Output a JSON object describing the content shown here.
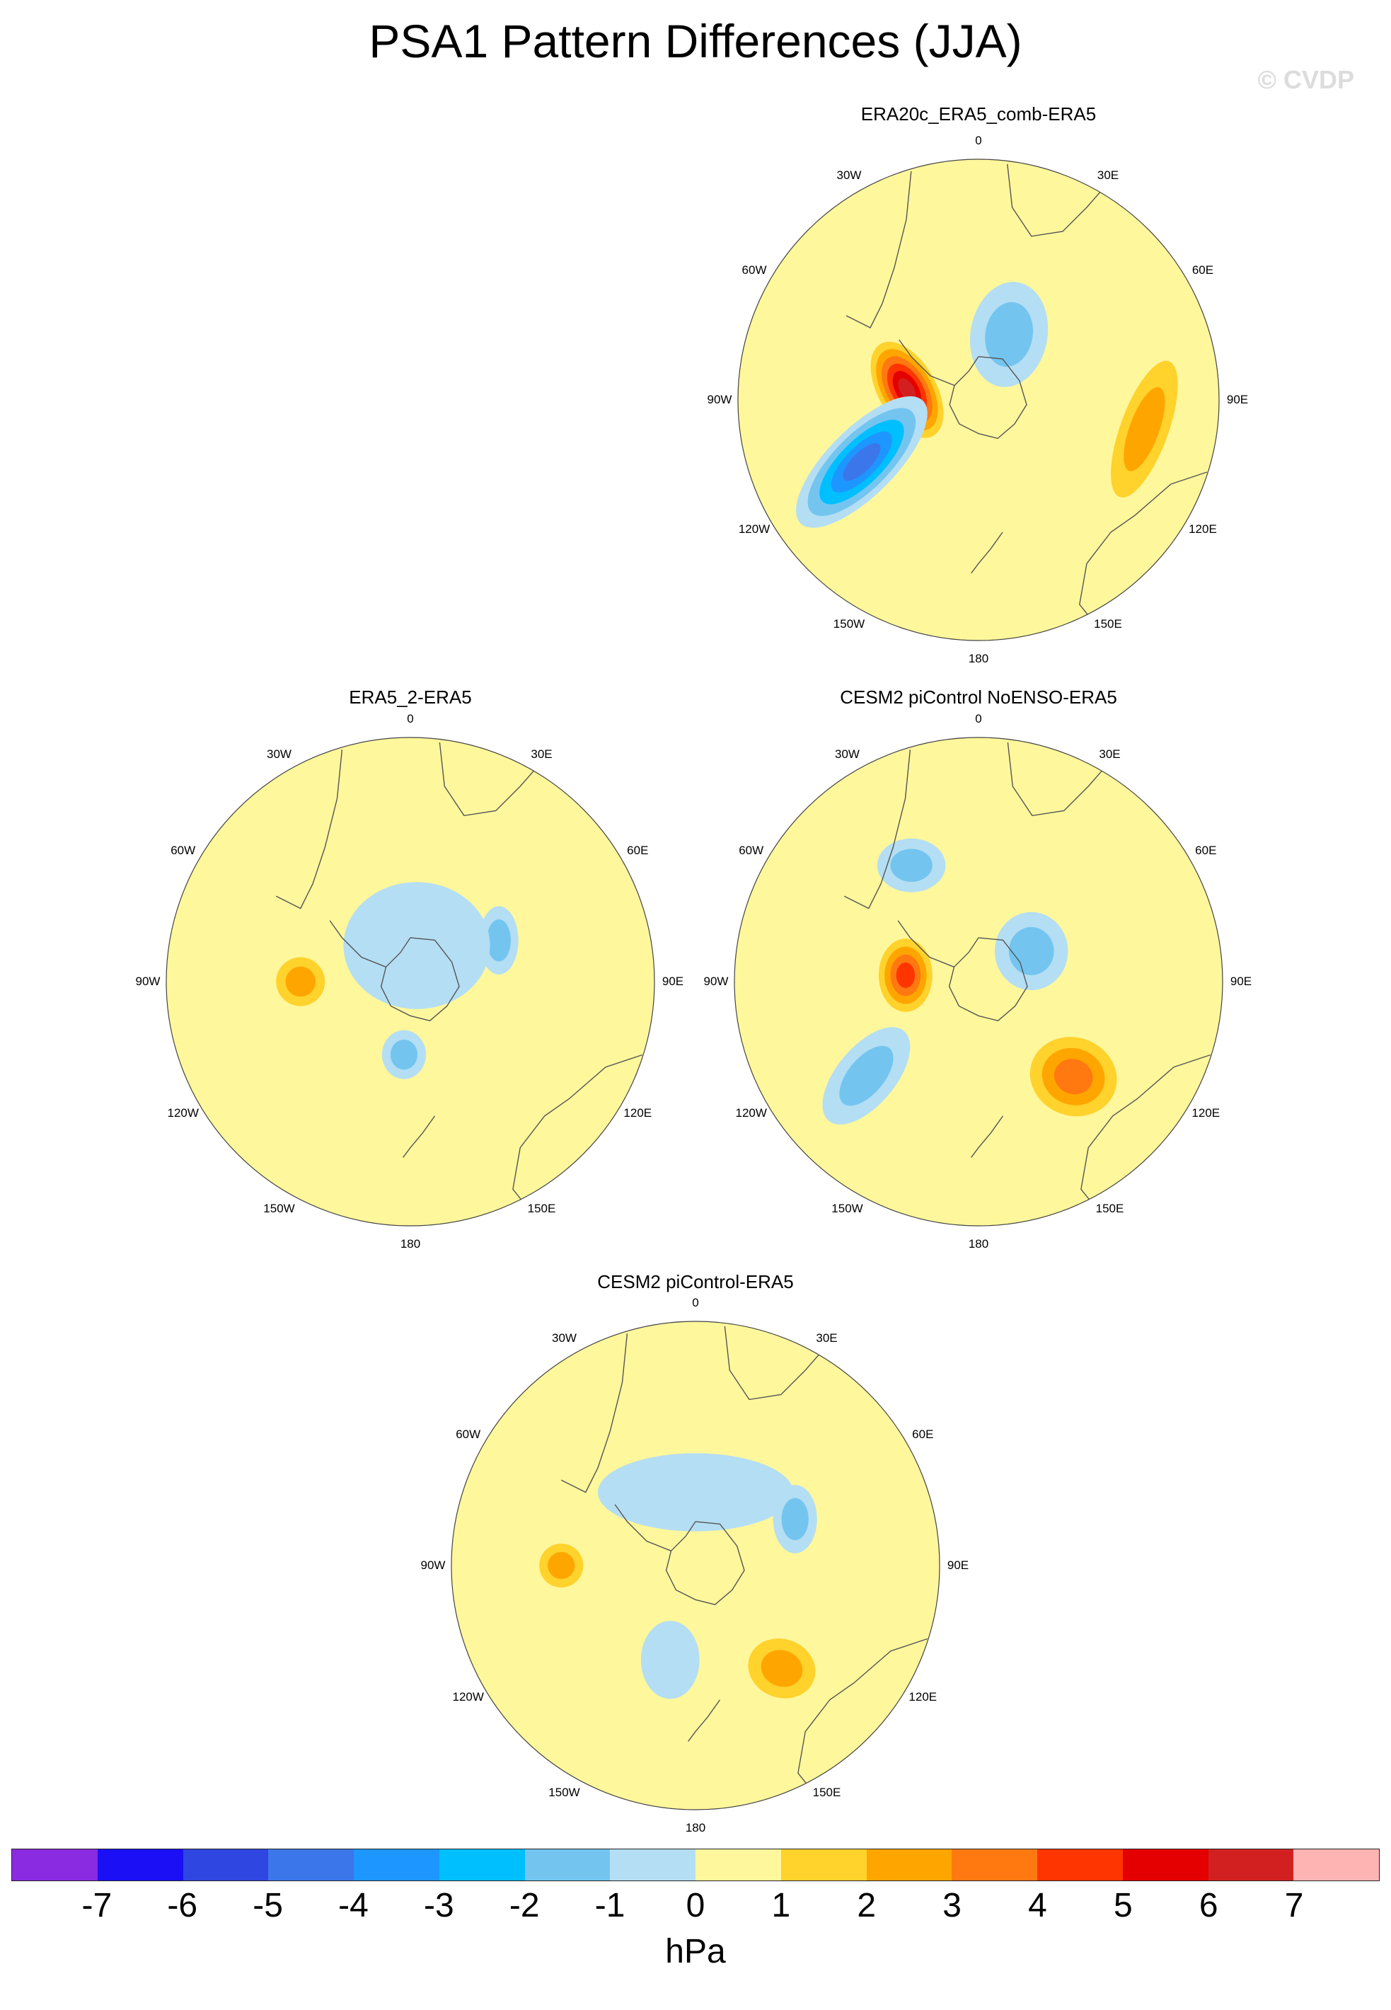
{
  "figure": {
    "title": "PSA1 Pattern Differences (JJA)",
    "credit": "© CVDP"
  },
  "longitude_labels": {
    "lon_0": "0",
    "lon_30e": "30E",
    "lon_60e": "60E",
    "lon_90e": "90E",
    "lon_120e": "120E",
    "lon_150e": "150E",
    "lon_180": "180",
    "lon_150w": "150W",
    "lon_120w": "120W",
    "lon_90w": "90W",
    "lon_60w": "60W",
    "lon_30w": "30W"
  },
  "panels": [
    {
      "title": "ERA20c_ERA5_comb-ERA5",
      "fields": [
        {
          "lon": -82,
          "colat": 0.3,
          "level": 6,
          "sx": 0.12,
          "sy": 0.22,
          "rot": -30
        },
        {
          "lon": -118,
          "colat": 0.55,
          "level": -5,
          "sx": 0.14,
          "sy": 0.36,
          "rot": 45
        },
        {
          "lon": 25,
          "colat": 0.3,
          "level": -2,
          "sx": 0.16,
          "sy": 0.22,
          "rot": 10
        },
        {
          "lon": 100,
          "colat": 0.7,
          "level": 2,
          "sx": 0.1,
          "sy": 0.3,
          "rot": 20
        }
      ]
    },
    {
      "title": "ERA5_2-ERA5",
      "fields": [
        {
          "lon": -90,
          "colat": 0.45,
          "level": 2,
          "sx": 0.1,
          "sy": 0.1,
          "rot": 0
        },
        {
          "lon": 65,
          "colat": 0.4,
          "level": -2,
          "sx": 0.08,
          "sy": 0.14,
          "rot": 0
        },
        {
          "lon": -175,
          "colat": 0.3,
          "level": -2,
          "sx": 0.09,
          "sy": 0.1,
          "rot": 0
        },
        {
          "lon": 10,
          "colat": 0.15,
          "level": -1,
          "sx": 0.3,
          "sy": 0.26,
          "rot": 0
        }
      ]
    },
    {
      "title": "CESM2 piControl NoENSO-ERA5",
      "fields": [
        {
          "lon": -85,
          "colat": 0.3,
          "level": 4,
          "sx": 0.11,
          "sy": 0.15,
          "rot": 0
        },
        {
          "lon": -30,
          "colat": 0.55,
          "level": -2,
          "sx": 0.14,
          "sy": 0.11,
          "rot": 0
        },
        {
          "lon": 60,
          "colat": 0.25,
          "level": -2,
          "sx": 0.15,
          "sy": 0.16,
          "rot": 0
        },
        {
          "lon": -130,
          "colat": 0.6,
          "level": -2,
          "sx": 0.12,
          "sy": 0.24,
          "rot": 40
        },
        {
          "lon": 135,
          "colat": 0.55,
          "level": 3,
          "sx": 0.18,
          "sy": 0.16,
          "rot": 20
        }
      ]
    },
    {
      "title": "CESM2 piControl-ERA5",
      "fields": [
        {
          "lon": 0,
          "colat": 0.3,
          "level": -1,
          "sx": 0.4,
          "sy": 0.16,
          "rot": 0
        },
        {
          "lon": 65,
          "colat": 0.45,
          "level": -2,
          "sx": 0.09,
          "sy": 0.14,
          "rot": 0
        },
        {
          "lon": -90,
          "colat": 0.55,
          "level": 2,
          "sx": 0.09,
          "sy": 0.09,
          "rot": 0
        },
        {
          "lon": 140,
          "colat": 0.55,
          "level": 2,
          "sx": 0.14,
          "sy": 0.12,
          "rot": 20
        },
        {
          "lon": -165,
          "colat": 0.4,
          "level": -1,
          "sx": 0.12,
          "sy": 0.16,
          "rot": 0
        }
      ]
    }
  ],
  "colorbar": {
    "colors": [
      "#8a2be2",
      "#1a0ff5",
      "#2f46e0",
      "#3b76ea",
      "#1e96ff",
      "#00bfff",
      "#73c5f0",
      "#b4def3",
      "#fff79c",
      "#ffd22c",
      "#ffa500",
      "#ff7810",
      "#ff3500",
      "#e40000",
      "#d22020",
      "#ffb4b4"
    ],
    "ticks": [
      "-7",
      "-6",
      "-5",
      "-4",
      "-3",
      "-2",
      "-1",
      "0",
      "1",
      "2",
      "3",
      "4",
      "5",
      "6",
      "7"
    ],
    "units": "hPa"
  }
}
